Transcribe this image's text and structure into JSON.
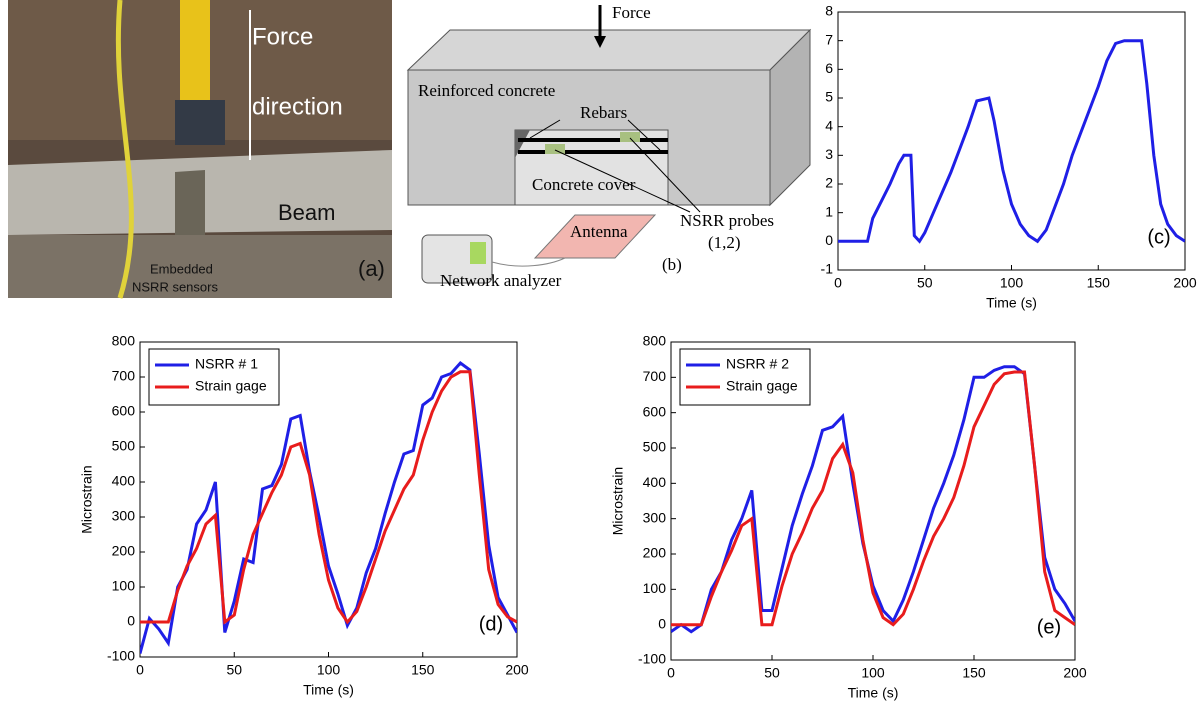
{
  "photo": {
    "labels": [
      "Force",
      "direction",
      "Beam",
      "Embedded",
      "NSRR sensors",
      "(a)"
    ]
  },
  "diagram": {
    "labels": [
      "Force",
      "Reinforced concrete",
      "Rebars",
      "Concrete cover",
      "NSRR probes",
      "(1,2)",
      "Antenna",
      "Network analyzer",
      "(b)"
    ]
  },
  "chart_data": [
    {
      "type": "line",
      "annotation": "(c)",
      "xlabel": "Time (s)",
      "x": [
        0,
        17,
        20,
        25,
        30,
        35,
        38,
        42,
        44,
        47,
        50,
        55,
        60,
        65,
        70,
        75,
        80,
        87,
        90,
        95,
        100,
        105,
        110,
        115,
        120,
        125,
        130,
        135,
        140,
        145,
        150,
        155,
        160,
        165,
        170,
        175,
        178,
        182,
        186,
        190,
        195,
        200
      ],
      "series": [
        {
          "color": "#1f1fe6",
          "values": [
            0,
            0,
            0.8,
            1.4,
            2.0,
            2.7,
            3.0,
            3.0,
            0.2,
            0,
            0.3,
            1.0,
            1.7,
            2.4,
            3.2,
            4.0,
            4.9,
            5.0,
            4.2,
            2.5,
            1.3,
            0.6,
            0.2,
            0,
            0.4,
            1.2,
            2.0,
            3.0,
            3.8,
            4.6,
            5.4,
            6.3,
            6.9,
            7.0,
            7.0,
            7.0,
            5.5,
            3.0,
            1.3,
            0.6,
            0.2,
            0
          ]
        }
      ],
      "xlim": [
        0,
        200
      ],
      "ylim": [
        -1,
        8
      ],
      "xticks": [
        0,
        50,
        100,
        150,
        200
      ],
      "yticks": [
        -1,
        0,
        1,
        2,
        3,
        4,
        5,
        6,
        7,
        8
      ]
    },
    {
      "type": "line",
      "annotation": "(d)",
      "xlabel": "Time (s)",
      "ylabel": "Microstrain",
      "legend": "upper left",
      "x": [
        0,
        5,
        10,
        15,
        20,
        25,
        30,
        35,
        40,
        45,
        50,
        55,
        60,
        65,
        70,
        75,
        80,
        85,
        90,
        95,
        100,
        105,
        110,
        115,
        120,
        125,
        130,
        135,
        140,
        145,
        150,
        155,
        160,
        165,
        170,
        175,
        180,
        185,
        190,
        195,
        200
      ],
      "series": [
        {
          "name": "NSRR # 1",
          "color": "#1f1fe6",
          "values": [
            -90,
            10,
            -20,
            -60,
            100,
            150,
            280,
            320,
            400,
            -30,
            60,
            180,
            170,
            380,
            390,
            450,
            580,
            590,
            430,
            300,
            160,
            80,
            -10,
            40,
            140,
            210,
            310,
            400,
            480,
            490,
            620,
            640,
            700,
            710,
            740,
            720,
            480,
            220,
            70,
            20,
            -30
          ]
        },
        {
          "name": "Strain gage",
          "color": "#e81c1c",
          "values": [
            0,
            0,
            0,
            0,
            90,
            160,
            210,
            280,
            305,
            0,
            20,
            150,
            250,
            310,
            370,
            420,
            500,
            510,
            420,
            250,
            120,
            40,
            0,
            30,
            100,
            180,
            260,
            320,
            380,
            420,
            520,
            600,
            660,
            700,
            715,
            715,
            420,
            150,
            50,
            15,
            0
          ]
        }
      ],
      "xlim": [
        0,
        200
      ],
      "ylim": [
        -100,
        800
      ],
      "xticks": [
        0,
        50,
        100,
        150,
        200
      ],
      "yticks": [
        -100,
        0,
        100,
        200,
        300,
        400,
        500,
        600,
        700,
        800
      ]
    },
    {
      "type": "line",
      "annotation": "(e)",
      "xlabel": "Time (s)",
      "ylabel": "Microstrain",
      "legend": "upper left",
      "x": [
        0,
        5,
        10,
        15,
        20,
        25,
        30,
        35,
        40,
        45,
        50,
        55,
        60,
        65,
        70,
        75,
        80,
        85,
        90,
        95,
        100,
        105,
        110,
        115,
        120,
        125,
        130,
        135,
        140,
        145,
        150,
        155,
        160,
        165,
        170,
        175,
        180,
        185,
        190,
        195,
        200
      ],
      "series": [
        {
          "name": "NSRR # 2",
          "color": "#1f1fe6",
          "values": [
            -20,
            0,
            -20,
            0,
            100,
            150,
            240,
            300,
            380,
            40,
            40,
            160,
            280,
            370,
            450,
            550,
            560,
            590,
            400,
            230,
            110,
            40,
            10,
            70,
            150,
            240,
            330,
            400,
            480,
            580,
            700,
            700,
            720,
            730,
            730,
            710,
            450,
            190,
            100,
            60,
            10
          ]
        },
        {
          "name": "Strain gage",
          "color": "#e81c1c",
          "values": [
            0,
            0,
            0,
            0,
            80,
            150,
            210,
            280,
            300,
            0,
            0,
            110,
            200,
            260,
            330,
            380,
            470,
            510,
            430,
            240,
            90,
            20,
            0,
            30,
            100,
            180,
            250,
            300,
            360,
            450,
            560,
            620,
            680,
            710,
            715,
            715,
            450,
            150,
            40,
            20,
            0
          ]
        }
      ],
      "xlim": [
        0,
        200
      ],
      "ylim": [
        -100,
        800
      ],
      "xticks": [
        0,
        50,
        100,
        150,
        200
      ],
      "yticks": [
        -100,
        0,
        100,
        200,
        300,
        400,
        500,
        600,
        700,
        800
      ]
    }
  ]
}
